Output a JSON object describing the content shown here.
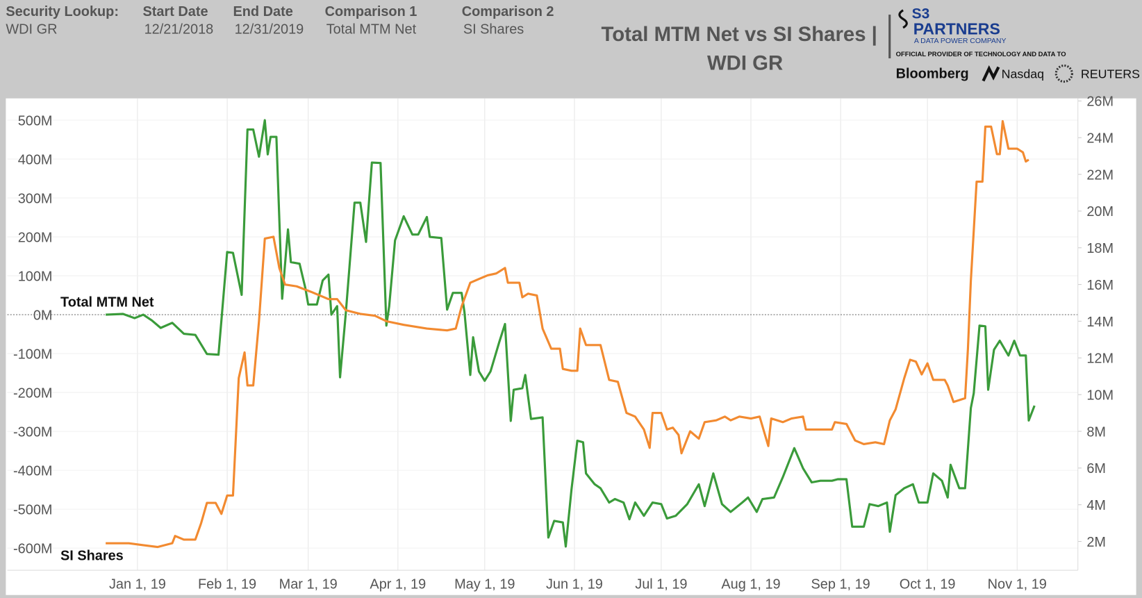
{
  "header": {
    "fields": [
      {
        "label": "Security Lookup:",
        "value": "WDI GR"
      },
      {
        "label": "Start Date",
        "value": "12/21/2018"
      },
      {
        "label": "End Date",
        "value": "12/31/2019"
      },
      {
        "label": "Comparison 1",
        "value": "Total MTM Net"
      },
      {
        "label": "Comparison 2",
        "value": "SI Shares"
      }
    ],
    "logo": {
      "brand": "S3",
      "name": "PARTNERS",
      "tagline": "A DATA POWER COMPANY",
      "provider": "OFFICIAL PROVIDER OF TECHNOLOGY AND DATA TO",
      "partners": [
        "Bloomberg",
        "Nasdaq",
        "REUTERS"
      ]
    }
  },
  "chart_data": {
    "type": "line",
    "title": "Total MTM Net vs SI Shares |",
    "subtitle": "WDI GR",
    "xlim": [
      "2018-11-17",
      "2019-11-22"
    ],
    "xticks": [
      {
        "value": "2019-01-01",
        "label": "Jan 1, 19"
      },
      {
        "value": "2019-02-01",
        "label": "Feb 1, 19"
      },
      {
        "value": "2019-03-01",
        "label": "Mar 1, 19"
      },
      {
        "value": "2019-04-01",
        "label": "Apr 1, 19"
      },
      {
        "value": "2019-05-01",
        "label": "May 1, 19"
      },
      {
        "value": "2019-06-01",
        "label": "Jun 1, 19"
      },
      {
        "value": "2019-07-01",
        "label": "Jul 1, 19"
      },
      {
        "value": "2019-08-01",
        "label": "Aug 1, 19"
      },
      {
        "value": "2019-09-01",
        "label": "Sep 1, 19"
      },
      {
        "value": "2019-10-01",
        "label": "Oct 1, 19"
      },
      {
        "value": "2019-11-01",
        "label": "Nov 1, 19"
      }
    ],
    "ylim": [
      -657,
      556
    ],
    "yticks": [
      {
        "value": 500,
        "label": "500M"
      },
      {
        "value": 400,
        "label": "400M"
      },
      {
        "value": 300,
        "label": "300M"
      },
      {
        "value": 200,
        "label": "200M"
      },
      {
        "value": 100,
        "label": "100M"
      },
      {
        "value": 0,
        "label": "0M"
      },
      {
        "value": -100,
        "label": "-100M"
      },
      {
        "value": -200,
        "label": "-200M"
      },
      {
        "value": -300,
        "label": "-300M"
      },
      {
        "value": -400,
        "label": "-400M"
      },
      {
        "value": -500,
        "label": "-500M"
      },
      {
        "value": -600,
        "label": "-600M"
      }
    ],
    "y2lim": [
      0.43,
      26.14
    ],
    "y2ticks": [
      {
        "value": 26,
        "label": "26M"
      },
      {
        "value": 24,
        "label": "24M"
      },
      {
        "value": 22,
        "label": "22M"
      },
      {
        "value": 20,
        "label": "20M"
      },
      {
        "value": 18,
        "label": "18M"
      },
      {
        "value": 16,
        "label": "16M"
      },
      {
        "value": 14,
        "label": "14M"
      },
      {
        "value": 12,
        "label": "12M"
      },
      {
        "value": 10,
        "label": "10M"
      },
      {
        "value": 8,
        "label": "8M"
      },
      {
        "value": 6,
        "label": "6M"
      },
      {
        "value": 4,
        "label": "4M"
      },
      {
        "value": 2,
        "label": "2M"
      }
    ],
    "grid": true,
    "series": [
      {
        "name": "Total MTM Net",
        "color": "#3a9b3a",
        "x": [
          "2018-12-21",
          "2018-12-27",
          "2018-12-31",
          "2019-01-03",
          "2019-01-06",
          "2019-01-09",
          "2019-01-13",
          "2019-01-17",
          "2019-01-21",
          "2019-01-25",
          "2019-01-29",
          "2019-01-30",
          "2019-02-01",
          "2019-02-03",
          "2019-02-06",
          "2019-02-08",
          "2019-02-10",
          "2019-02-12",
          "2019-02-14",
          "2019-02-15",
          "2019-02-16",
          "2019-02-18",
          "2019-02-20",
          "2019-02-22",
          "2019-02-23",
          "2019-02-26",
          "2019-02-28",
          "2019-03-01",
          "2019-03-04",
          "2019-03-06",
          "2019-03-08",
          "2019-03-09",
          "2019-03-11",
          "2019-03-12",
          "2019-03-14",
          "2019-03-17",
          "2019-03-19",
          "2019-03-21",
          "2019-03-23",
          "2019-03-26",
          "2019-03-28",
          "2019-03-29",
          "2019-03-31",
          "2019-04-03",
          "2019-04-06",
          "2019-04-08",
          "2019-04-11",
          "2019-04-12",
          "2019-04-16",
          "2019-04-18",
          "2019-04-20",
          "2019-04-23",
          "2019-04-24",
          "2019-04-26",
          "2019-04-27",
          "2019-04-29",
          "2019-05-01",
          "2019-05-03",
          "2019-05-06",
          "2019-05-08",
          "2019-05-10",
          "2019-05-11",
          "2019-05-14",
          "2019-05-15",
          "2019-05-17",
          "2019-05-21",
          "2019-05-23",
          "2019-05-25",
          "2019-05-28",
          "2019-05-29",
          "2019-05-31",
          "2019-06-02",
          "2019-06-04",
          "2019-06-05",
          "2019-06-08",
          "2019-06-10",
          "2019-06-13",
          "2019-06-15",
          "2019-06-18",
          "2019-06-20",
          "2019-06-22",
          "2019-06-25",
          "2019-06-28",
          "2019-07-01",
          "2019-07-03",
          "2019-07-06",
          "2019-07-10",
          "2019-07-14",
          "2019-07-16",
          "2019-07-19",
          "2019-07-22",
          "2019-07-25",
          "2019-07-29",
          "2019-07-31",
          "2019-08-03",
          "2019-08-05",
          "2019-08-09",
          "2019-08-12",
          "2019-08-16",
          "2019-08-19",
          "2019-08-22",
          "2019-08-25",
          "2019-08-29",
          "2019-08-31",
          "2019-09-03",
          "2019-09-05",
          "2019-09-09",
          "2019-09-11",
          "2019-09-14",
          "2019-09-17",
          "2019-09-18",
          "2019-09-20",
          "2019-09-23",
          "2019-09-26",
          "2019-09-28",
          "2019-10-01",
          "2019-10-03",
          "2019-10-06",
          "2019-10-08",
          "2019-10-09",
          "2019-10-12",
          "2019-10-14",
          "2019-10-16",
          "2019-10-17",
          "2019-10-19",
          "2019-10-21",
          "2019-10-22",
          "2019-10-24",
          "2019-10-26",
          "2019-10-29",
          "2019-10-31",
          "2019-11-02",
          "2019-11-04",
          "2019-11-05",
          "2019-11-07"
        ],
        "values": [
          0,
          2,
          -9,
          0,
          -15,
          -34,
          -21,
          -49,
          -52,
          -101,
          -103,
          -15,
          161,
          159,
          51,
          476,
          476,
          406,
          500,
          412,
          457,
          457,
          41,
          219,
          135,
          131,
          69,
          26,
          26,
          88,
          103,
          0,
          22,
          -161,
          4,
          288,
          288,
          187,
          391,
          390,
          -28,
          22,
          191,
          253,
          206,
          206,
          251,
          200,
          197,
          13,
          56,
          56,
          7,
          -155,
          -58,
          -146,
          -170,
          -146,
          -71,
          -24,
          -273,
          -193,
          -189,
          -155,
          -268,
          -264,
          -573,
          -530,
          -534,
          -596,
          -449,
          -324,
          -328,
          -408,
          -436,
          -446,
          -483,
          -474,
          -483,
          -526,
          -483,
          -517,
          -483,
          -487,
          -524,
          -517,
          -487,
          -436,
          -492,
          -408,
          -487,
          -507,
          -483,
          -470,
          -507,
          -474,
          -470,
          -418,
          -343,
          -395,
          -431,
          -427,
          -427,
          -423,
          -423,
          -545,
          -545,
          -487,
          -492,
          -483,
          -558,
          -464,
          -446,
          -436,
          -483,
          -483,
          -408,
          -427,
          -470,
          -386,
          -446,
          -446,
          -240,
          -202,
          -28,
          -30,
          -193,
          -90,
          -67,
          -105,
          -67,
          -105,
          -105,
          -272,
          -234
        ]
      },
      {
        "name": "SI Shares",
        "color": "#f28a30",
        "axis": "y2",
        "x": [
          "2018-12-21",
          "2018-12-29",
          "2019-01-03",
          "2019-01-08",
          "2019-01-13",
          "2019-01-14",
          "2019-01-17",
          "2019-01-19",
          "2019-01-21",
          "2019-01-23",
          "2019-01-25",
          "2019-01-28",
          "2019-01-30",
          "2019-02-01",
          "2019-02-03",
          "2019-02-05",
          "2019-02-07",
          "2019-02-08",
          "2019-02-10",
          "2019-02-12",
          "2019-02-14",
          "2019-02-17",
          "2019-02-19",
          "2019-02-21",
          "2019-02-25",
          "2019-03-02",
          "2019-03-08",
          "2019-03-11",
          "2019-03-14",
          "2019-03-19",
          "2019-03-24",
          "2019-03-28",
          "2019-04-03",
          "2019-04-11",
          "2019-04-18",
          "2019-04-21",
          "2019-04-23",
          "2019-04-26",
          "2019-04-29",
          "2019-05-02",
          "2019-05-05",
          "2019-05-08",
          "2019-05-09",
          "2019-05-13",
          "2019-05-14",
          "2019-05-16",
          "2019-05-19",
          "2019-05-21",
          "2019-05-24",
          "2019-05-27",
          "2019-05-28",
          "2019-05-31",
          "2019-06-02",
          "2019-06-03",
          "2019-06-05",
          "2019-06-08",
          "2019-06-10",
          "2019-06-13",
          "2019-06-16",
          "2019-06-19",
          "2019-06-22",
          "2019-06-25",
          "2019-06-27",
          "2019-06-28",
          "2019-07-01",
          "2019-07-03",
          "2019-07-05",
          "2019-07-07",
          "2019-07-08",
          "2019-07-11",
          "2019-07-14",
          "2019-07-16",
          "2019-07-20",
          "2019-07-23",
          "2019-07-25",
          "2019-07-28",
          "2019-08-01",
          "2019-08-04",
          "2019-08-07",
          "2019-08-08",
          "2019-08-12",
          "2019-08-15",
          "2019-08-19",
          "2019-08-20",
          "2019-08-25",
          "2019-08-29",
          "2019-08-30",
          "2019-09-03",
          "2019-09-06",
          "2019-09-09",
          "2019-09-13",
          "2019-09-16",
          "2019-09-18",
          "2019-09-20",
          "2019-09-23",
          "2019-09-25",
          "2019-09-27",
          "2019-09-29",
          "2019-10-01",
          "2019-10-03",
          "2019-10-07",
          "2019-10-08",
          "2019-10-10",
          "2019-10-14",
          "2019-10-15",
          "2019-10-16",
          "2019-10-18",
          "2019-10-20",
          "2019-10-21",
          "2019-10-23",
          "2019-10-25",
          "2019-10-26",
          "2019-10-27",
          "2019-10-29",
          "2019-11-01",
          "2019-11-03",
          "2019-11-04",
          "2019-11-05"
        ],
        "values": [
          1.9,
          1.9,
          1.8,
          1.7,
          1.9,
          2.3,
          2.1,
          2.1,
          2.1,
          3.0,
          4.1,
          4.1,
          3.5,
          4.5,
          4.5,
          10.9,
          12.3,
          10.5,
          10.5,
          14.0,
          18.5,
          18.6,
          16.9,
          16.0,
          15.9,
          15.6,
          15.2,
          15.2,
          14.6,
          14.4,
          14.3,
          14.0,
          13.8,
          13.6,
          13.5,
          13.6,
          14.8,
          16.1,
          16.3,
          16.5,
          16.6,
          16.9,
          16.1,
          16.1,
          15.3,
          15.5,
          15.4,
          13.6,
          12.5,
          12.5,
          11.4,
          11.3,
          11.3,
          13.6,
          12.7,
          12.7,
          12.7,
          10.8,
          10.7,
          9.0,
          8.8,
          8.1,
          7.1,
          9.0,
          9.0,
          8.1,
          8.2,
          7.8,
          6.8,
          8.0,
          7.6,
          8.5,
          8.6,
          8.8,
          8.6,
          8.8,
          8.7,
          8.8,
          7.2,
          8.7,
          8.5,
          8.7,
          8.8,
          8.1,
          8.1,
          8.1,
          8.5,
          8.4,
          7.5,
          7.3,
          7.4,
          7.3,
          8.6,
          9.2,
          10.9,
          11.9,
          11.8,
          11.1,
          11.7,
          10.8,
          10.8,
          10.5,
          9.6,
          9.8,
          12.5,
          16.2,
          21.6,
          21.6,
          24.6,
          24.6,
          23.1,
          23.1,
          24.9,
          23.4,
          23.4,
          23.2,
          22.7,
          22.8
        ]
      }
    ]
  }
}
